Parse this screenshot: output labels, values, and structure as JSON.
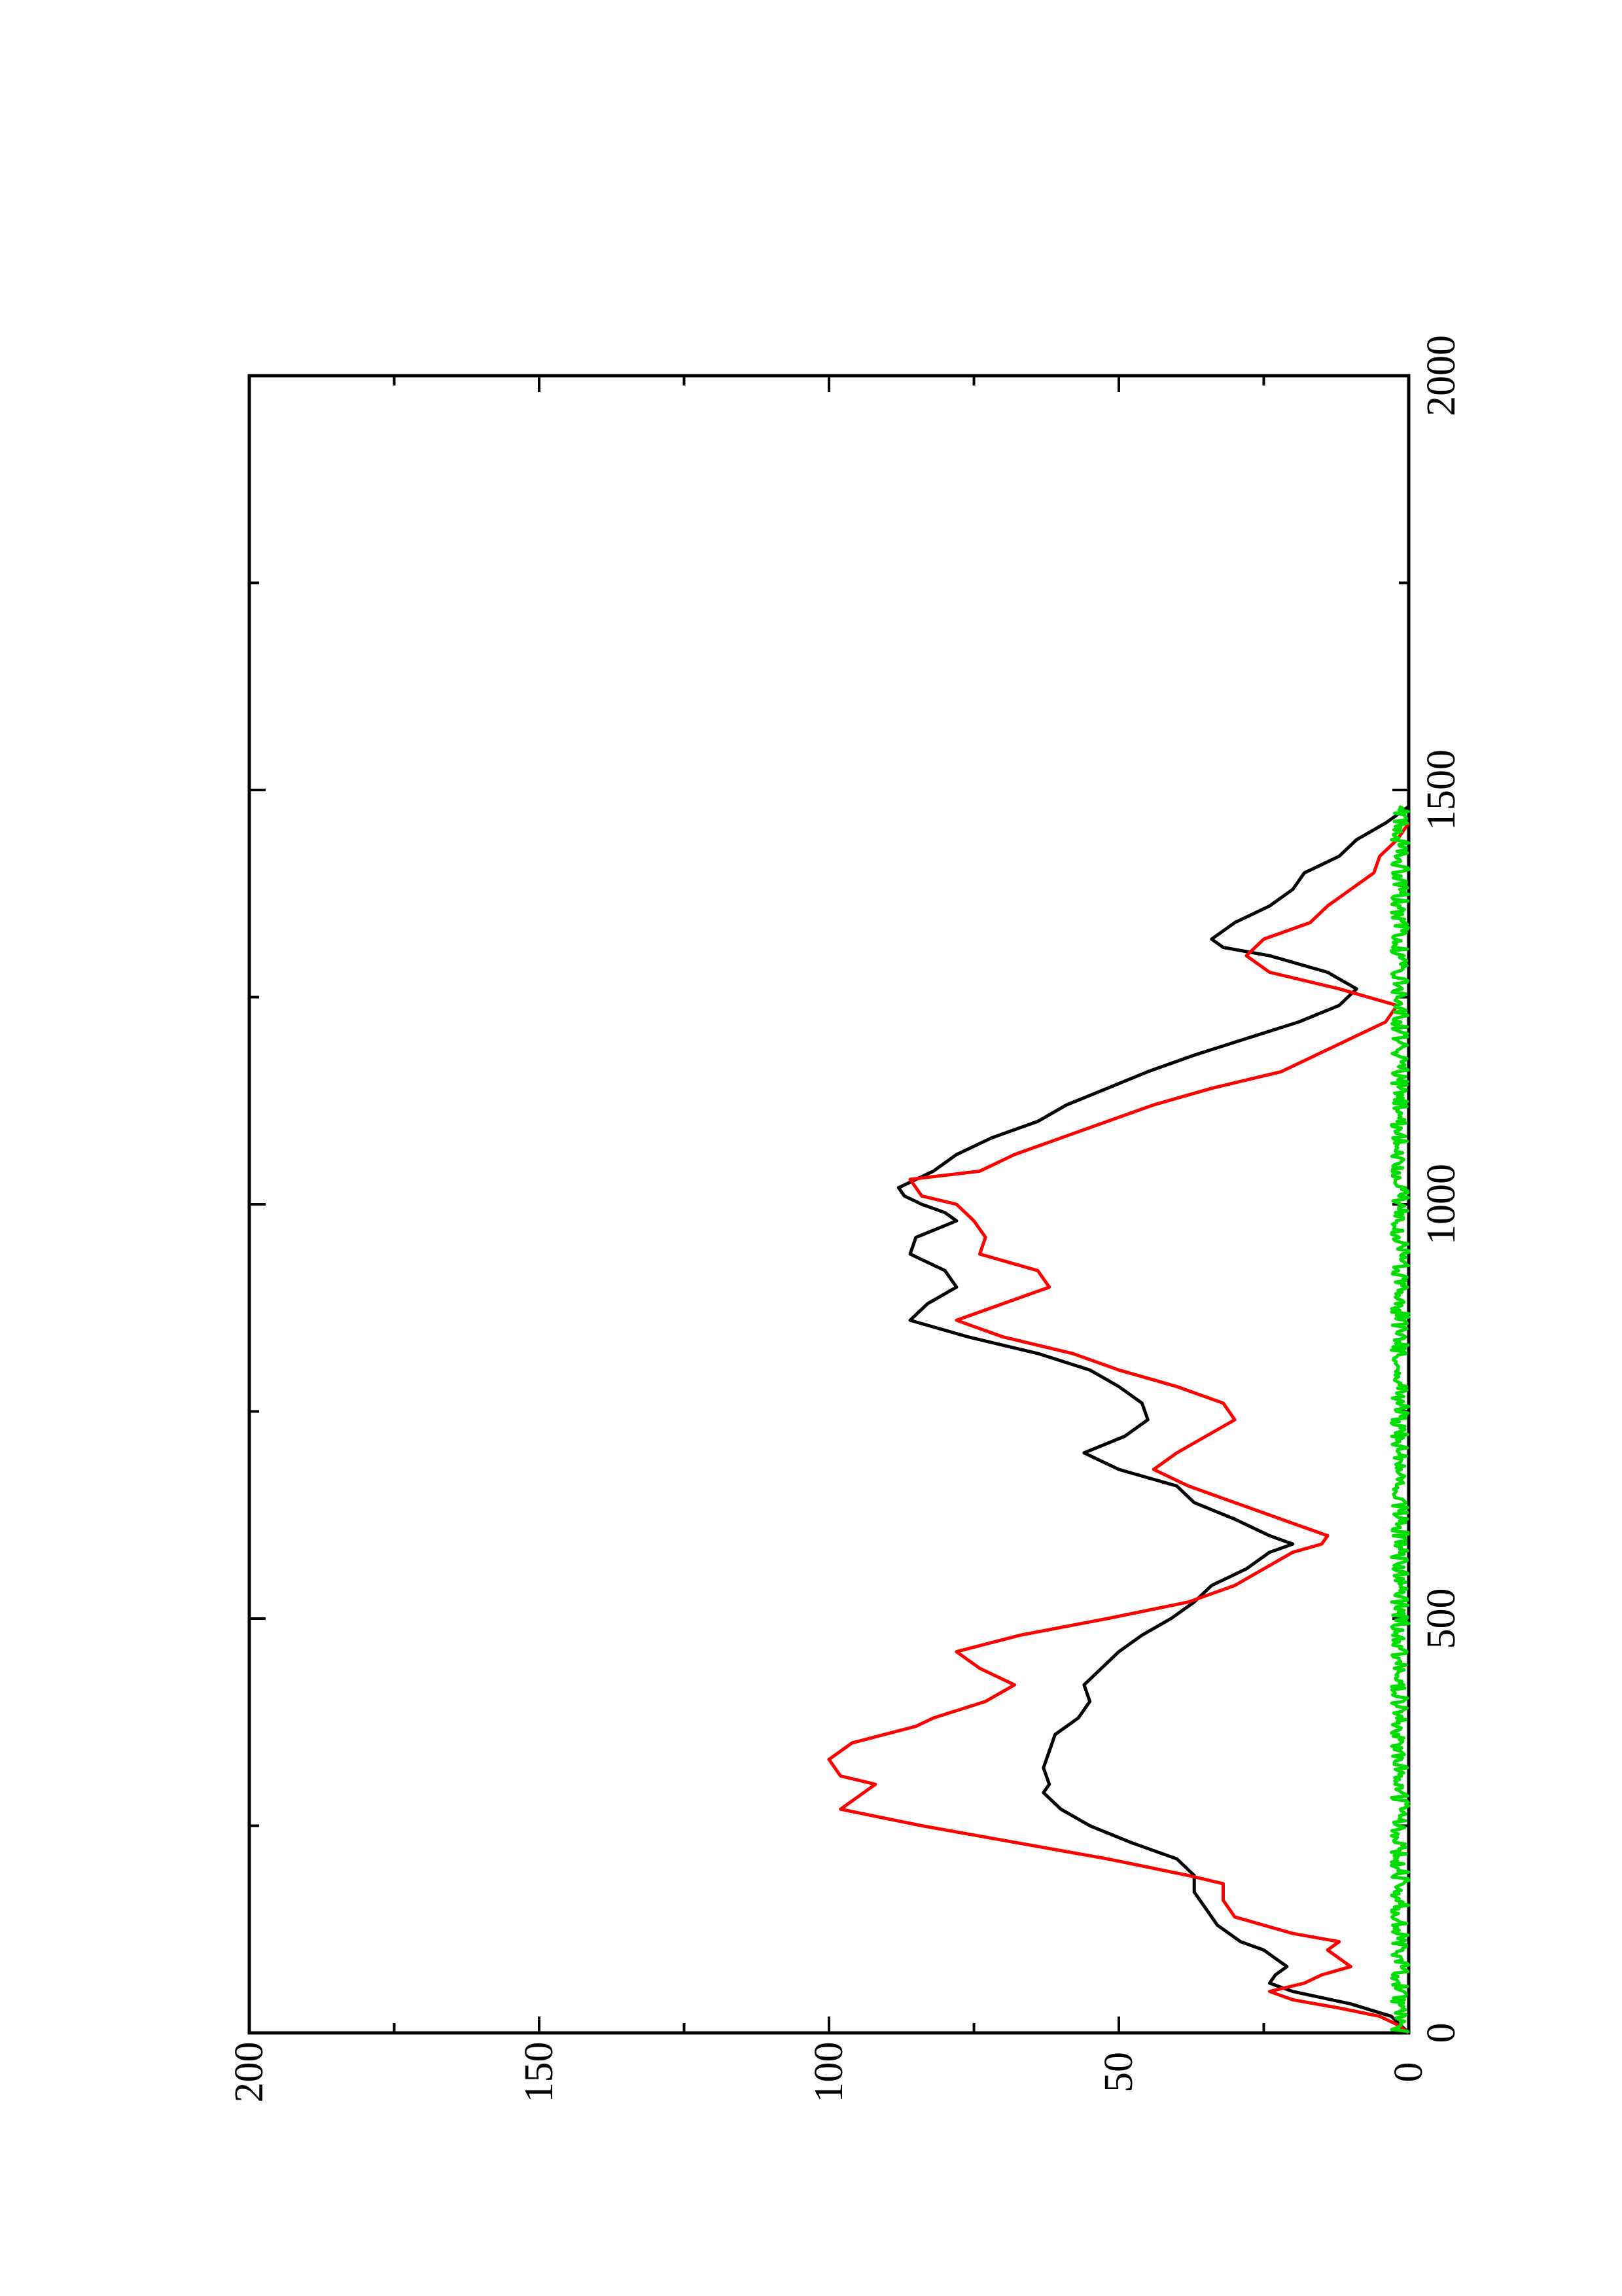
{
  "chart_data": {
    "type": "line",
    "title": "",
    "xlabel": "",
    "ylabel": "",
    "orientation": "rotated-90-ccw",
    "xlim": [
      0,
      2000
    ],
    "ylim": [
      0,
      200
    ],
    "x_ticks": [
      0,
      500,
      1000,
      1500,
      2000
    ],
    "x_minor_ticks": [
      250,
      750,
      1250,
      1750
    ],
    "y_ticks": [
      0,
      50,
      100,
      150,
      200
    ],
    "y_minor_ticks": [
      25,
      75,
      125,
      175
    ],
    "grid": false,
    "legend": "none",
    "series": [
      {
        "color": "#000000",
        "points": [
          [
            0,
            0
          ],
          [
            20,
            3
          ],
          [
            35,
            10
          ],
          [
            50,
            20
          ],
          [
            60,
            24
          ],
          [
            70,
            23
          ],
          [
            80,
            21
          ],
          [
            90,
            23
          ],
          [
            100,
            25
          ],
          [
            110,
            29
          ],
          [
            130,
            33
          ],
          [
            150,
            35
          ],
          [
            170,
            37
          ],
          [
            190,
            37
          ],
          [
            210,
            40
          ],
          [
            230,
            48
          ],
          [
            250,
            55
          ],
          [
            270,
            60
          ],
          [
            290,
            63
          ],
          [
            300,
            62
          ],
          [
            320,
            63
          ],
          [
            340,
            62
          ],
          [
            360,
            61
          ],
          [
            380,
            57
          ],
          [
            400,
            55
          ],
          [
            420,
            56
          ],
          [
            440,
            53
          ],
          [
            460,
            50
          ],
          [
            480,
            46
          ],
          [
            500,
            41
          ],
          [
            520,
            37
          ],
          [
            540,
            34
          ],
          [
            560,
            28
          ],
          [
            580,
            24
          ],
          [
            590,
            20
          ],
          [
            600,
            24
          ],
          [
            620,
            30
          ],
          [
            640,
            37
          ],
          [
            660,
            40
          ],
          [
            680,
            50
          ],
          [
            700,
            56
          ],
          [
            720,
            49
          ],
          [
            740,
            45
          ],
          [
            760,
            46
          ],
          [
            780,
            50
          ],
          [
            800,
            55
          ],
          [
            820,
            64
          ],
          [
            840,
            76
          ],
          [
            860,
            86
          ],
          [
            880,
            83
          ],
          [
            900,
            78
          ],
          [
            920,
            80
          ],
          [
            940,
            86
          ],
          [
            960,
            85
          ],
          [
            980,
            78
          ],
          [
            990,
            80
          ],
          [
            1000,
            84
          ],
          [
            1010,
            87
          ],
          [
            1020,
            88
          ],
          [
            1030,
            85
          ],
          [
            1040,
            82
          ],
          [
            1060,
            78
          ],
          [
            1080,
            72
          ],
          [
            1100,
            64
          ],
          [
            1120,
            59
          ],
          [
            1140,
            52
          ],
          [
            1160,
            45
          ],
          [
            1180,
            37
          ],
          [
            1200,
            28
          ],
          [
            1220,
            19
          ],
          [
            1240,
            12
          ],
          [
            1260,
            9
          ],
          [
            1280,
            14
          ],
          [
            1300,
            24
          ],
          [
            1310,
            32
          ],
          [
            1320,
            34
          ],
          [
            1340,
            30
          ],
          [
            1360,
            24
          ],
          [
            1380,
            20
          ],
          [
            1400,
            18
          ],
          [
            1420,
            12
          ],
          [
            1440,
            9
          ],
          [
            1460,
            4
          ],
          [
            1480,
            0
          ]
        ]
      },
      {
        "color": "#ff0000",
        "points": [
          [
            0,
            0
          ],
          [
            10,
            2
          ],
          [
            20,
            5
          ],
          [
            30,
            12
          ],
          [
            40,
            20
          ],
          [
            50,
            24
          ],
          [
            60,
            18
          ],
          [
            70,
            15
          ],
          [
            80,
            10
          ],
          [
            100,
            14
          ],
          [
            110,
            12
          ],
          [
            120,
            20
          ],
          [
            140,
            30
          ],
          [
            160,
            32
          ],
          [
            180,
            32
          ],
          [
            190,
            38
          ],
          [
            210,
            52
          ],
          [
            230,
            68
          ],
          [
            250,
            84
          ],
          [
            270,
            98
          ],
          [
            290,
            94
          ],
          [
            300,
            92
          ],
          [
            310,
            98
          ],
          [
            330,
            100
          ],
          [
            350,
            96
          ],
          [
            370,
            85
          ],
          [
            380,
            82
          ],
          [
            400,
            73
          ],
          [
            420,
            68
          ],
          [
            440,
            74
          ],
          [
            460,
            78
          ],
          [
            480,
            67
          ],
          [
            500,
            52
          ],
          [
            520,
            38
          ],
          [
            540,
            30
          ],
          [
            560,
            25
          ],
          [
            580,
            20
          ],
          [
            590,
            15
          ],
          [
            600,
            14
          ],
          [
            620,
            22
          ],
          [
            640,
            30
          ],
          [
            660,
            38
          ],
          [
            680,
            44
          ],
          [
            700,
            40
          ],
          [
            720,
            35
          ],
          [
            740,
            30
          ],
          [
            760,
            32
          ],
          [
            780,
            40
          ],
          [
            800,
            50
          ],
          [
            820,
            58
          ],
          [
            840,
            70
          ],
          [
            860,
            78
          ],
          [
            880,
            70
          ],
          [
            900,
            62
          ],
          [
            920,
            64
          ],
          [
            940,
            74
          ],
          [
            960,
            73
          ],
          [
            980,
            75
          ],
          [
            1000,
            78
          ],
          [
            1010,
            84
          ],
          [
            1030,
            86
          ],
          [
            1040,
            74
          ],
          [
            1060,
            68
          ],
          [
            1080,
            60
          ],
          [
            1100,
            52
          ],
          [
            1120,
            44
          ],
          [
            1140,
            34
          ],
          [
            1160,
            22
          ],
          [
            1180,
            16
          ],
          [
            1200,
            10
          ],
          [
            1220,
            4
          ],
          [
            1240,
            2
          ],
          [
            1260,
            12
          ],
          [
            1280,
            24
          ],
          [
            1300,
            28
          ],
          [
            1320,
            25
          ],
          [
            1340,
            17
          ],
          [
            1360,
            14
          ],
          [
            1380,
            10
          ],
          [
            1400,
            6
          ],
          [
            1420,
            5
          ],
          [
            1440,
            2
          ],
          [
            1460,
            0
          ]
        ]
      },
      {
        "color": "#00dd00",
        "noise": true,
        "x_range": [
          0,
          1480
        ],
        "value_range": [
          0,
          3
        ]
      }
    ]
  }
}
